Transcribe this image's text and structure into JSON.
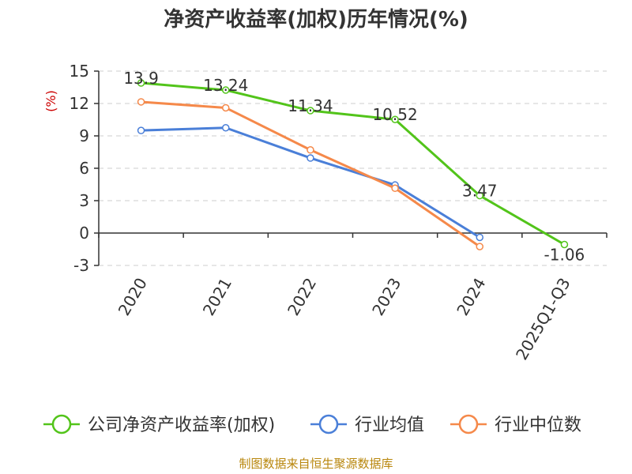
{
  "chart_data": {
    "type": "line",
    "title": "净资产收益率(加权)历年情况(%)",
    "ylabel": "(%)",
    "xlabel": "",
    "categories": [
      "2020",
      "2021",
      "2022",
      "2023",
      "2024",
      "2025Q1-Q3"
    ],
    "ylim": [
      -3,
      15
    ],
    "yticks": [
      15,
      12,
      9,
      6,
      3,
      0,
      -3
    ],
    "grid": true,
    "legend_position": "bottom",
    "series": [
      {
        "name": "公司净资产收益率(加权)",
        "color": "#52c41a",
        "values": [
          13.9,
          13.24,
          11.34,
          10.52,
          3.47,
          -1.06
        ],
        "labels": [
          "13.9",
          "13.24",
          "11.34",
          "10.52",
          "3.47",
          "-1.06"
        ]
      },
      {
        "name": "行业均值",
        "color": "#4a7fd8",
        "values": [
          9.5,
          9.75,
          6.95,
          4.45,
          -0.4,
          null
        ]
      },
      {
        "name": "行业中位数",
        "color": "#f5894a",
        "values": [
          12.15,
          11.6,
          7.7,
          4.15,
          -1.25,
          null
        ]
      }
    ]
  },
  "source_note": "制图数据来自恒生聚源数据库",
  "colors": {
    "ylabel": "#cc0000",
    "source": "#b8860b",
    "grid": "#cccccc",
    "axis": "#333333"
  }
}
